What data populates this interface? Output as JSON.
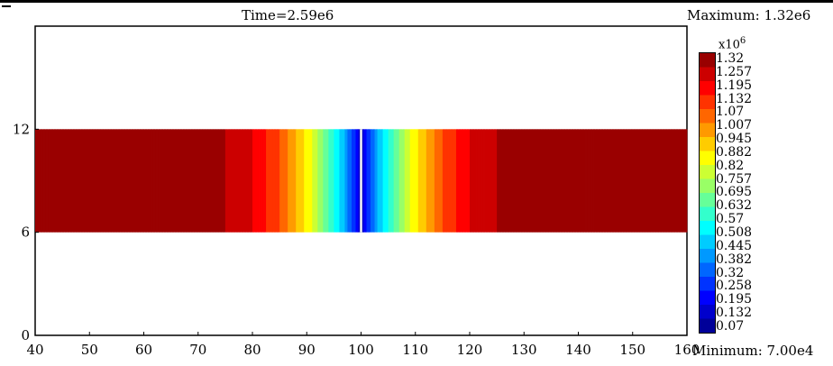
{
  "chart_data": {
    "type": "heatmap",
    "title": "Time=2.59e6",
    "max_label": "Maximum: 1.32e6",
    "min_label": "Minimum: 7.00e4",
    "xlim": [
      40,
      160
    ],
    "ylim": [
      0,
      18
    ],
    "x_ticks": [
      "40",
      "50",
      "60",
      "70",
      "80",
      "90",
      "100",
      "110",
      "120",
      "130",
      "140",
      "150",
      "160"
    ],
    "y_ticks": [
      "0",
      "6",
      "12"
    ],
    "band": {
      "y_range": [
        6,
        12
      ]
    },
    "profile": {
      "x": [
        40,
        75,
        75.1,
        80,
        85,
        88,
        91,
        94,
        97,
        99.5,
        100,
        100.5,
        103,
        106,
        109,
        112,
        115,
        120,
        125,
        125.1,
        160
      ],
      "value": [
        1.32,
        1.32,
        1.257,
        1.195,
        1.07,
        0.945,
        0.82,
        0.63,
        0.44,
        0.2,
        0.07,
        0.2,
        0.44,
        0.63,
        0.82,
        0.945,
        1.07,
        1.195,
        1.257,
        1.32,
        1.32
      ]
    },
    "colorbar": {
      "exponent_base": "x10",
      "exponent_power": "6",
      "min": 0.07,
      "max": 1.32,
      "ticks": [
        "1.32",
        "1.257",
        "1.195",
        "1.132",
        "1.07",
        "1.007",
        "0.945",
        "0.882",
        "0.82",
        "0.757",
        "0.695",
        "0.632",
        "0.57",
        "0.508",
        "0.445",
        "0.382",
        "0.32",
        "0.258",
        "0.195",
        "0.132",
        "0.07"
      ],
      "colors": [
        "#000080",
        "#0000ff",
        "#0080ff",
        "#00ffff",
        "#80ff80",
        "#ffff00",
        "#ff8000",
        "#ff0000",
        "#800000"
      ]
    }
  }
}
